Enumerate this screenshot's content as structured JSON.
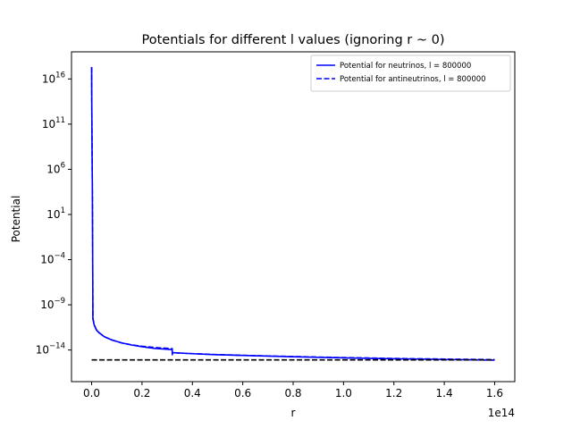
{
  "chart_data": {
    "type": "line",
    "title": "Potentials for different l values (ignoring r ~ 0)",
    "xlabel": "r",
    "ylabel": "Potential",
    "x_offset_text": "1e14",
    "x_scale_factor": 100000000000000.0,
    "xlim": [
      -8000000000000.0,
      168000000000000.0
    ],
    "ylim_log10": [
      -17.5,
      19.0
    ],
    "y_scale": "log",
    "grid": false,
    "legend_position": "top-right",
    "x_ticks": [
      0,
      20000000000000.0,
      40000000000000.0,
      60000000000000.0,
      80000000000000.0,
      100000000000000.0,
      120000000000000.0,
      140000000000000.0,
      160000000000000.0
    ],
    "x_tick_labels": [
      "0.0",
      "0.2",
      "0.4",
      "0.6",
      "0.8",
      "1.0",
      "1.2",
      "1.4",
      "1.6"
    ],
    "y_ticks_log10": [
      16,
      11,
      6,
      1,
      -4,
      -9,
      -14
    ],
    "y_tick_bases": [
      "10",
      "10",
      "10",
      "10",
      "10",
      "10",
      "10"
    ],
    "y_tick_exponents": [
      "16",
      "11",
      "6",
      "1",
      "−4",
      "−9",
      "−14"
    ],
    "series": [
      {
        "name": "Potential for neutrinos, l = 800000",
        "color": "#0000ff",
        "style": "solid",
        "points": [
          [
            0.0,
            2e+17
          ],
          [
            20000000000.0,
            1000000000000000.0
          ],
          [
            100000000000.0,
            100000000000.0
          ],
          [
            200000000000.0,
            10000000.0
          ],
          [
            300000000000.0,
            1000.0
          ],
          [
            400000000000.0,
            0.001
          ],
          [
            500000000000.0,
            3e-11
          ],
          [
            1000000000000.0,
            6e-12
          ],
          [
            2000000000000.0,
            1.5e-12
          ],
          [
            3000000000000.0,
            8e-13
          ],
          [
            5000000000000.0,
            3e-13
          ],
          [
            8000000000000.0,
            1.3e-13
          ],
          [
            12000000000000.0,
            6e-14
          ],
          [
            16000000000000.0,
            3.5e-14
          ],
          [
            20000000000000.0,
            2.3e-14
          ],
          [
            25000000000000.0,
            1.5e-14
          ],
          [
            32000000000000.0,
            1.1e-14
          ],
          [
            32000000000000.0,
            3e-15
          ],
          [
            32100000000000.0,
            5e-15
          ],
          [
            33000000000000.0,
            5e-15
          ],
          [
            40000000000000.0,
            3.9e-15
          ],
          [
            50000000000000.0,
            3e-15
          ],
          [
            60000000000000.0,
            2.5e-15
          ],
          [
            70000000000000.0,
            2.1e-15
          ],
          [
            80000000000000.0,
            1.8e-15
          ],
          [
            90000000000000.0,
            1.55e-15
          ],
          [
            100000000000000.0,
            1.35e-15
          ],
          [
            110000000000000.0,
            1.2e-15
          ],
          [
            120000000000000.0,
            1.07e-15
          ],
          [
            130000000000000.0,
            9.7e-16
          ],
          [
            140000000000000.0,
            8.9e-16
          ],
          [
            150000000000000.0,
            8.2e-16
          ],
          [
            160000000000000.0,
            7.6e-16
          ]
        ]
      },
      {
        "name": "Potential for antineutrinos, l = 800000",
        "color": "#0000ff",
        "style": "dashed",
        "points": [
          [
            0.0,
            2e+17
          ],
          [
            20000000000.0,
            1000000000000000.0
          ],
          [
            100000000000.0,
            100000000000.0
          ],
          [
            200000000000.0,
            10000000.0
          ],
          [
            300000000000.0,
            1000.0
          ],
          [
            400000000000.0,
            0.001
          ],
          [
            500000000000.0,
            3e-11
          ],
          [
            1000000000000.0,
            6e-12
          ],
          [
            2000000000000.0,
            1.5e-12
          ],
          [
            3000000000000.0,
            8e-13
          ],
          [
            5000000000000.0,
            3e-13
          ],
          [
            8000000000000.0,
            1.3e-13
          ],
          [
            12000000000000.0,
            6e-14
          ],
          [
            16000000000000.0,
            3.7e-14
          ],
          [
            20000000000000.0,
            2.6e-14
          ],
          [
            25000000000000.0,
            1.9e-14
          ],
          [
            32000000000000.0,
            1.45e-14
          ],
          [
            32000000000000.0,
            5e-15
          ],
          [
            40000000000000.0,
            4e-15
          ],
          [
            50000000000000.0,
            3.1e-15
          ],
          [
            60000000000000.0,
            2.6e-15
          ],
          [
            70000000000000.0,
            2.2e-15
          ],
          [
            80000000000000.0,
            1.9e-15
          ],
          [
            90000000000000.0,
            1.65e-15
          ],
          [
            100000000000000.0,
            1.45e-15
          ],
          [
            110000000000000.0,
            1.3e-15
          ],
          [
            120000000000000.0,
            1.17e-15
          ],
          [
            130000000000000.0,
            1.07e-15
          ],
          [
            140000000000000.0,
            9.9e-16
          ],
          [
            150000000000000.0,
            9.2e-16
          ],
          [
            160000000000000.0,
            8.7e-16
          ]
        ]
      },
      {
        "color": "#000000",
        "style": "dashed",
        "points": [
          [
            0.0,
            8e-16
          ],
          [
            160000000000000.0,
            8e-16
          ]
        ]
      }
    ]
  }
}
